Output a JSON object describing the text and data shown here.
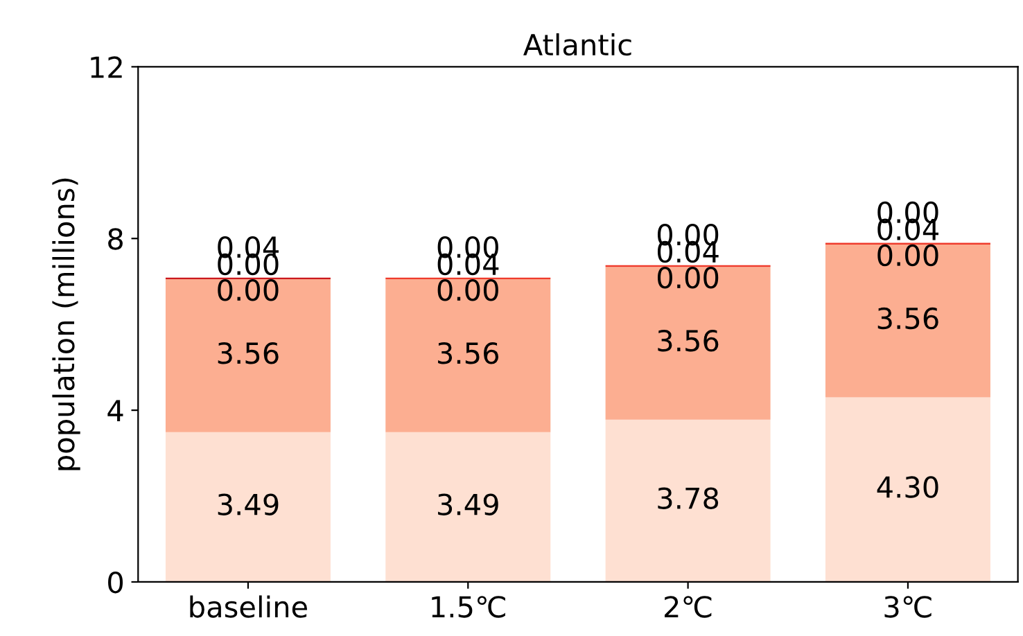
{
  "chart_data": {
    "type": "bar",
    "stacked": true,
    "title": "Atlantic",
    "ylabel": "population (millions)",
    "categories": [
      "baseline",
      "1.5℃",
      "2℃",
      "3℃"
    ],
    "series": [
      {
        "color": "#fee0d2",
        "values": [
          3.49,
          3.49,
          3.78,
          4.3
        ],
        "value_labels": [
          "3.49",
          "3.49",
          "3.78",
          "4.30"
        ]
      },
      {
        "color": "#fcae91",
        "values": [
          3.56,
          3.56,
          3.56,
          3.56
        ],
        "value_labels": [
          "3.56",
          "3.56",
          "3.56",
          "3.56"
        ]
      },
      {
        "color": "#fb6a4a",
        "values": [
          0.0,
          0.0,
          0.0,
          0.0
        ],
        "value_labels": [
          "0.00",
          "0.00",
          "0.00",
          "0.00"
        ]
      },
      {
        "color": "#ef3b2c",
        "values": [
          0.0,
          0.04,
          0.04,
          0.04
        ],
        "value_labels": [
          "0.00",
          "0.04",
          "0.04",
          "0.04"
        ]
      },
      {
        "color": "#cb181d",
        "values": [
          0.04,
          0.0,
          0.0,
          0.0
        ],
        "value_labels": [
          "0.04",
          "0.00",
          "0.00",
          "0.00"
        ]
      }
    ],
    "ylim": [
      0,
      12
    ],
    "yticks": [
      0,
      4,
      8,
      12
    ],
    "legend": false
  }
}
